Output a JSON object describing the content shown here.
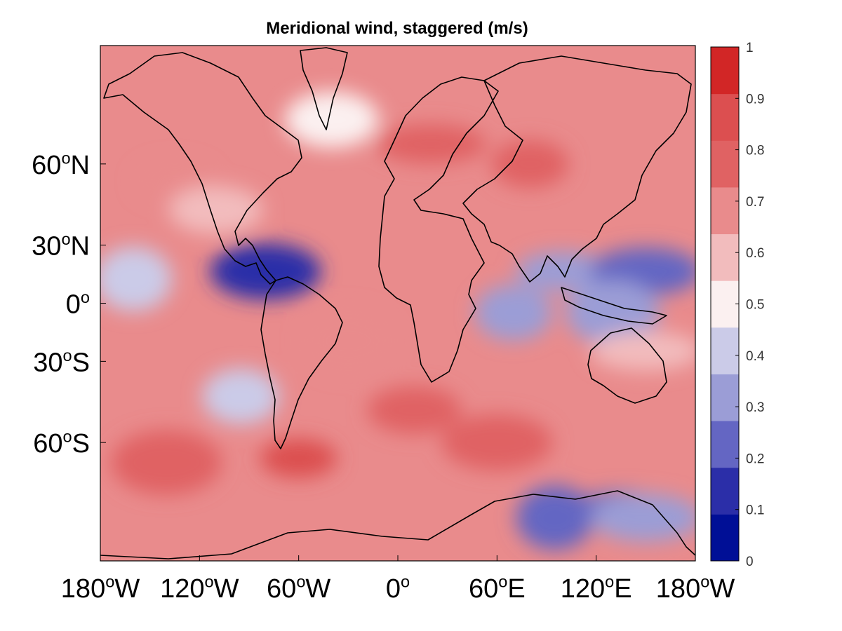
{
  "title": "Meridional wind, staggered (m/s)",
  "lat_ticks": [
    {
      "value": 60,
      "deg": "60",
      "hemi": "N"
    },
    {
      "value": 30,
      "deg": "30",
      "hemi": "N"
    },
    {
      "value": 0,
      "deg": "0",
      "hemi": ""
    },
    {
      "value": -30,
      "deg": "30",
      "hemi": "S"
    },
    {
      "value": -60,
      "deg": "60",
      "hemi": "S"
    }
  ],
  "lon_ticks": [
    {
      "value": -180,
      "deg": "180",
      "hemi": "W"
    },
    {
      "value": -120,
      "deg": "120",
      "hemi": "W"
    },
    {
      "value": -60,
      "deg": "60",
      "hemi": "W"
    },
    {
      "value": 0,
      "deg": "0",
      "hemi": ""
    },
    {
      "value": 60,
      "deg": "60",
      "hemi": "E"
    },
    {
      "value": 120,
      "deg": "120",
      "hemi": "E"
    },
    {
      "value": 180,
      "deg": "180",
      "hemi": "W"
    }
  ],
  "colorbar": {
    "levels": [
      "0",
      "0.1",
      "0.2",
      "0.3",
      "0.4",
      "0.5",
      "0.6",
      "0.7",
      "0.8",
      "0.9",
      "1"
    ],
    "colors": [
      "#000f96",
      "#2b2ea8",
      "#6466c3",
      "#9b9dd6",
      "#cbcbe8",
      "#fbf0f0",
      "#f2bcbd",
      "#e98b8c",
      "#e06263",
      "#dc4f50",
      "#d22626"
    ]
  },
  "colors": {
    "background_field": "#e98b8c",
    "coastline": "#000000"
  },
  "chart_data": {
    "type": "heatmap",
    "title": "Meridional wind, staggered (m/s)",
    "projection": "mercator",
    "lon_range": [
      -180,
      180
    ],
    "lat_range": [
      -80,
      80
    ],
    "value_range": [
      0,
      1
    ],
    "regions": [
      {
        "lon": -135,
        "lat": 55,
        "value": 0.75
      },
      {
        "lon": -110,
        "lat": 45,
        "value": 0.65
      },
      {
        "lon": -80,
        "lat": 17,
        "value": 0.15
      },
      {
        "lon": -160,
        "lat": 13,
        "value": 0.4
      },
      {
        "lon": 100,
        "lat": 17,
        "value": 0.3
      },
      {
        "lon": 150,
        "lat": 17,
        "value": 0.2
      },
      {
        "lon": 70,
        "lat": -5,
        "value": 0.3
      },
      {
        "lon": 130,
        "lat": -5,
        "value": 0.35
      },
      {
        "lon": 20,
        "lat": 65,
        "value": 0.85
      },
      {
        "lon": 80,
        "lat": 60,
        "value": 0.8
      },
      {
        "lon": -40,
        "lat": 70,
        "value": 0.55
      },
      {
        "lon": -140,
        "lat": -65,
        "value": 0.85
      },
      {
        "lon": -60,
        "lat": -64,
        "value": 0.95
      },
      {
        "lon": 10,
        "lat": -50,
        "value": 0.85
      },
      {
        "lon": 60,
        "lat": -60,
        "value": 0.85
      },
      {
        "lon": 95,
        "lat": -75,
        "value": 0.25
      },
      {
        "lon": 135,
        "lat": -74,
        "value": 0.25
      },
      {
        "lon": 150,
        "lat": -75,
        "value": 0.35
      },
      {
        "lon": -95,
        "lat": -45,
        "value": 0.45
      },
      {
        "lon": -30,
        "lat": -20,
        "value": 0.75
      },
      {
        "lon": 150,
        "lat": -25,
        "value": 0.6
      }
    ]
  }
}
